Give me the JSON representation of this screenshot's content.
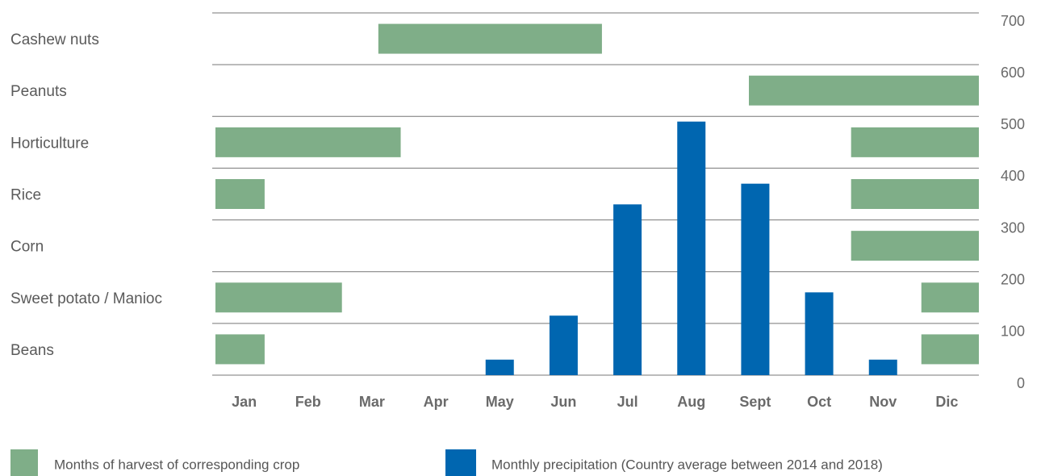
{
  "chart_data": {
    "type": "bar",
    "categories": [
      "Jan",
      "Feb",
      "Mar",
      "Apr",
      "May",
      "Jun",
      "Jul",
      "Aug",
      "Sept",
      "Oct",
      "Nov",
      "Dic"
    ],
    "series": [
      {
        "name": "Monthly precipitation (Country average between 2014 and 2018)",
        "color": "#0066b0",
        "values": [
          0,
          0,
          0,
          0,
          30,
          115,
          330,
          490,
          370,
          160,
          30,
          0
        ]
      }
    ],
    "harvest": {
      "name": "Months of harvest of corresponding crop",
      "color": "#7fae88",
      "crops": [
        {
          "name": "Cashew nuts",
          "periods": [
            [
              2.6,
              6.1
            ]
          ]
        },
        {
          "name": "Peanuts",
          "periods": [
            [
              8.4,
              12
            ]
          ]
        },
        {
          "name": "Horticulture",
          "periods": [
            [
              0.05,
              2.95
            ],
            [
              10,
              12
            ]
          ]
        },
        {
          "name": "Rice",
          "periods": [
            [
              0.05,
              0.82
            ],
            [
              10,
              12
            ]
          ]
        },
        {
          "name": "Corn",
          "periods": [
            [
              10,
              12
            ]
          ]
        },
        {
          "name": "Sweet potato / Manioc",
          "periods": [
            [
              0.05,
              2.03
            ],
            [
              11.1,
              12
            ]
          ]
        },
        {
          "name": "Beans",
          "periods": [
            [
              0.05,
              0.82
            ],
            [
              11.1,
              12
            ]
          ]
        }
      ]
    },
    "ylim": [
      0,
      700
    ],
    "yticks": [
      0,
      100,
      200,
      300,
      400,
      500,
      600,
      700
    ],
    "grid": true
  }
}
